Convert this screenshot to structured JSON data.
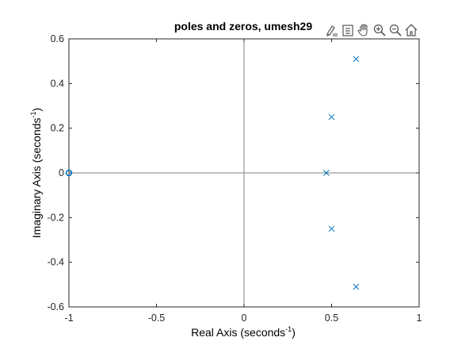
{
  "toolbar": {
    "items": [
      {
        "name": "brush-icon",
        "label": "Brush"
      },
      {
        "name": "legend-icon",
        "label": "Insert legend"
      },
      {
        "name": "pan-icon",
        "label": "Pan"
      },
      {
        "name": "zoom-in-icon",
        "label": "Zoom in"
      },
      {
        "name": "zoom-out-icon",
        "label": "Zoom out"
      },
      {
        "name": "home-icon",
        "label": "Restore view"
      }
    ]
  },
  "chart_data": {
    "type": "scatter",
    "title": "poles and zeros, umesh29",
    "xlabel_main": "Real  Axis  (seconds",
    "xlabel_sup": "-1",
    "xlabel_end": ")",
    "ylabel_main": "Imaginary  Axis  (seconds",
    "ylabel_sup": "-1",
    "ylabel_end": ")",
    "xlim": [
      -1,
      1
    ],
    "ylim": [
      -0.6,
      0.6
    ],
    "xticks": [
      -1,
      -0.5,
      0,
      0.5,
      1
    ],
    "xtick_labels": [
      "-1",
      "-0.5",
      "0",
      "0.5",
      "1"
    ],
    "yticks": [
      -0.6,
      -0.4,
      -0.2,
      0,
      0.2,
      0.4,
      0.6
    ],
    "ytick_labels": [
      "-0.6",
      "-0.4",
      "-0.2",
      "0",
      "0.2",
      "0.4",
      "0.6"
    ],
    "grid": false,
    "series": [
      {
        "marker": "x",
        "color": "#0072bd",
        "points": [
          {
            "x": 0.64,
            "y": 0.51
          },
          {
            "x": 0.5,
            "y": 0.25
          },
          {
            "x": 0.47,
            "y": 0.0
          },
          {
            "x": 0.5,
            "y": -0.25
          },
          {
            "x": 0.64,
            "y": -0.51
          }
        ]
      },
      {
        "marker": "o",
        "color": "#0072bd",
        "points": [
          {
            "x": -1.0,
            "y": 0.0
          }
        ]
      }
    ]
  }
}
